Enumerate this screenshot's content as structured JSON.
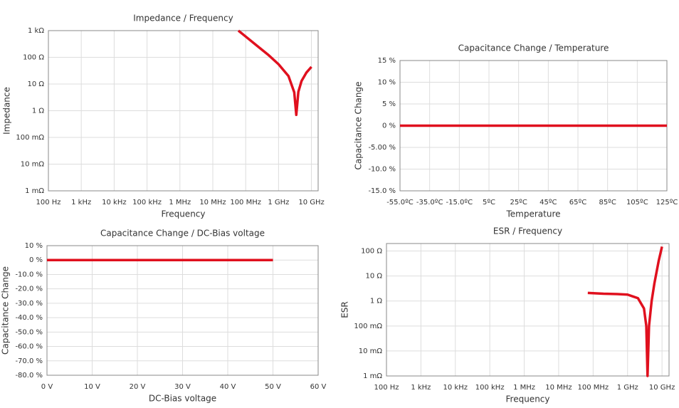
{
  "chart_data": [
    {
      "type": "line",
      "title": "Impedance / Frequency",
      "x_label": "Frequency",
      "y_label": "Impedance",
      "xlog": true,
      "ylog": true,
      "grid": true,
      "xlim": [
        100,
        16000000000
      ],
      "ylim": [
        0.001,
        1000
      ],
      "xticks": [
        {
          "value": 100,
          "label": "100 Hz"
        },
        {
          "value": 1000,
          "label": "1 kHz"
        },
        {
          "value": 10000,
          "label": "10 kHz"
        },
        {
          "value": 100000,
          "label": "100 kHz"
        },
        {
          "value": 1000000,
          "label": "1 MHz"
        },
        {
          "value": 10000000,
          "label": "10 MHz"
        },
        {
          "value": 100000000,
          "label": "100 MHz"
        },
        {
          "value": 1000000000,
          "label": "1 GHz"
        },
        {
          "value": 10000000000,
          "label": "10 GHz"
        }
      ],
      "yticks": [
        {
          "value": 1000,
          "label": "1 kΩ"
        },
        {
          "value": 100,
          "label": "100 Ω"
        },
        {
          "value": 10,
          "label": "10 Ω"
        },
        {
          "value": 1,
          "label": "1 Ω"
        },
        {
          "value": 0.1,
          "label": "100 mΩ"
        },
        {
          "value": 0.01,
          "label": "10 mΩ"
        },
        {
          "value": 0.001,
          "label": "1 mΩ"
        }
      ],
      "series": [
        {
          "color": "#e0101e",
          "x": [
            60000000,
            100000000,
            200000000,
            500000000,
            1000000000,
            2000000000,
            3000000000,
            3460000000,
            4000000000,
            5000000000,
            7000000000,
            10000000000
          ],
          "values": [
            1000,
            600,
            300,
            120,
            55,
            20,
            4.9,
            0.7,
            5.1,
            13,
            26.6,
            44
          ]
        }
      ]
    },
    {
      "type": "line",
      "title": "Capacitance Change / Temperature",
      "x_label": "Temperature",
      "y_label": "Capacitance Change",
      "xlog": false,
      "ylog": false,
      "grid": true,
      "xlim": [
        -55,
        125
      ],
      "ylim": [
        -15,
        15
      ],
      "xticks": [
        {
          "value": -55,
          "label": "-55.0ºC"
        },
        {
          "value": -35,
          "label": "-35.0ºC"
        },
        {
          "value": -15,
          "label": "-15.0ºC"
        },
        {
          "value": 5,
          "label": "5ºC"
        },
        {
          "value": 25,
          "label": "25ºC"
        },
        {
          "value": 45,
          "label": "45ºC"
        },
        {
          "value": 65,
          "label": "65ºC"
        },
        {
          "value": 85,
          "label": "85ºC"
        },
        {
          "value": 105,
          "label": "105ºC"
        },
        {
          "value": 125,
          "label": "125ºC"
        }
      ],
      "yticks": [
        {
          "value": 15,
          "label": "15 %"
        },
        {
          "value": 10,
          "label": "10 %"
        },
        {
          "value": 5,
          "label": "5 %"
        },
        {
          "value": 0,
          "label": "0 %"
        },
        {
          "value": -5,
          "label": "-5.00 %"
        },
        {
          "value": -10,
          "label": "-10.0 %"
        },
        {
          "value": -15,
          "label": "-15.0 %"
        }
      ],
      "series": [
        {
          "color": "#e0101e",
          "x": [
            -55,
            125
          ],
          "values": [
            0,
            0
          ]
        }
      ]
    },
    {
      "type": "line",
      "title": "Capacitance Change / DC-Bias voltage",
      "x_label": "DC-Bias voltage",
      "y_label": "Capacitance Change",
      "xlog": false,
      "ylog": false,
      "grid": true,
      "xlim": [
        0,
        60
      ],
      "ylim": [
        -80,
        10
      ],
      "xticks": [
        {
          "value": 0,
          "label": "0 V"
        },
        {
          "value": 10,
          "label": "10 V"
        },
        {
          "value": 20,
          "label": "20 V"
        },
        {
          "value": 30,
          "label": "30 V"
        },
        {
          "value": 40,
          "label": "40 V"
        },
        {
          "value": 50,
          "label": "50 V"
        },
        {
          "value": 60,
          "label": "60 V"
        }
      ],
      "yticks": [
        {
          "value": 10,
          "label": "10 %"
        },
        {
          "value": 0,
          "label": "0 %"
        },
        {
          "value": -10,
          "label": "-10.0 %"
        },
        {
          "value": -20,
          "label": "-20.0 %"
        },
        {
          "value": -30,
          "label": "-30.0 %"
        },
        {
          "value": -40,
          "label": "-40.0 %"
        },
        {
          "value": -50,
          "label": "-50.0 %"
        },
        {
          "value": -60,
          "label": "-60.0 %"
        },
        {
          "value": -70,
          "label": "-70.0 %"
        },
        {
          "value": -80,
          "label": "-80.0 %"
        }
      ],
      "series": [
        {
          "color": "#e0101e",
          "x": [
            0,
            50
          ],
          "values": [
            0,
            0
          ]
        }
      ]
    },
    {
      "type": "line",
      "title": "ESR / Frequency",
      "x_label": "Frequency",
      "y_label": "ESR",
      "xlog": true,
      "ylog": true,
      "grid": true,
      "xlim": [
        100,
        16000000000
      ],
      "ylim": [
        0.001,
        200
      ],
      "xticks": [
        {
          "value": 100,
          "label": "100 Hz"
        },
        {
          "value": 1000,
          "label": "1 kHz"
        },
        {
          "value": 10000,
          "label": "10 kHz"
        },
        {
          "value": 100000,
          "label": "100 kHz"
        },
        {
          "value": 1000000,
          "label": "1 MHz"
        },
        {
          "value": 10000000,
          "label": "10 MHz"
        },
        {
          "value": 100000000,
          "label": "100 MHz"
        },
        {
          "value": 1000000000,
          "label": "1 GHz"
        },
        {
          "value": 10000000000,
          "label": "10 GHz"
        }
      ],
      "yticks": [
        {
          "value": 100,
          "label": "100 Ω"
        },
        {
          "value": 10,
          "label": "10 Ω"
        },
        {
          "value": 1,
          "label": "1 Ω"
        },
        {
          "value": 0.1,
          "label": "100 mΩ"
        },
        {
          "value": 0.01,
          "label": "10 mΩ"
        },
        {
          "value": 0.001,
          "label": "1 mΩ"
        }
      ],
      "series": [
        {
          "color": "#e0101e",
          "x": [
            70000000,
            200000000,
            500000000,
            1000000000,
            2000000000,
            3000000000,
            3500000000,
            3800000000,
            4200000000,
            5000000000,
            6000000000,
            8000000000,
            10000000000
          ],
          "values": [
            2.1,
            1.95,
            1.9,
            1.8,
            1.3,
            0.5,
            0.1,
            0.001,
            0.1,
            1,
            5,
            40,
            150
          ]
        }
      ]
    }
  ]
}
